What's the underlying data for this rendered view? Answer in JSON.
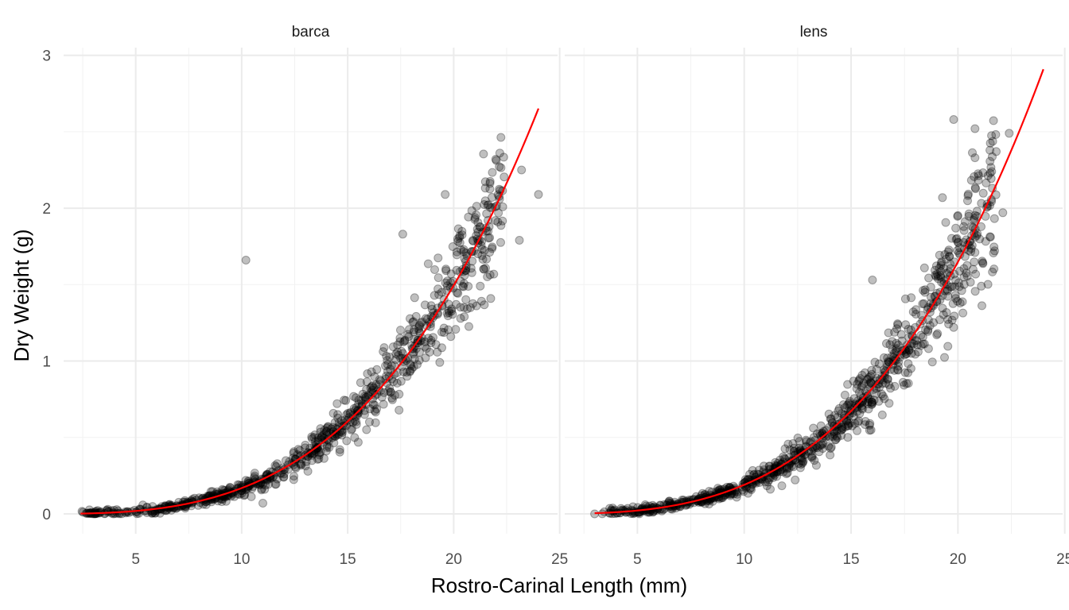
{
  "chart_data": {
    "type": "scatter",
    "xlabel": "Rostro-Carinal Length (mm)",
    "ylabel": "Dry Weight (g)",
    "xlim": [
      1.6,
      24.9
    ],
    "ylim": [
      -0.13,
      3.05
    ],
    "x_ticks": [
      5,
      10,
      15,
      20,
      25
    ],
    "y_ticks": [
      0,
      1,
      2,
      3
    ],
    "grid": true,
    "legend": "none",
    "point_color": "#000000",
    "point_alpha": 0.25,
    "fit_color": "#ff0000",
    "facets": [
      {
        "name": "barca",
        "fit": {
          "model": "power",
          "a": 0.000121,
          "b": 3.145,
          "x_range": [
            2.4,
            24.0
          ]
        },
        "outliers": [
          [
            10.2,
            1.66
          ],
          [
            17.6,
            1.83
          ],
          [
            23.2,
            2.25
          ],
          [
            24.0,
            2.09
          ],
          [
            23.1,
            1.79
          ],
          [
            11.0,
            0.07
          ],
          [
            20.5,
            1.29
          ],
          [
            19.6,
            2.09
          ]
        ],
        "point_count": 830,
        "sample_xrange": [
          2.4,
          22.4
        ],
        "spread": 0.11
      },
      {
        "name": "lens",
        "fit": {
          "model": "power",
          "a": 0.000146,
          "b": 3.115,
          "x_range": [
            3.0,
            24.0
          ]
        },
        "outliers": [
          [
            3.0,
            0.0
          ],
          [
            19.8,
            2.58
          ],
          [
            20.8,
            2.52
          ],
          [
            22.4,
            2.49
          ],
          [
            22.1,
            1.97
          ],
          [
            20.8,
            2.33
          ],
          [
            16.0,
            1.53
          ],
          [
            19.8,
            1.22
          ]
        ],
        "point_count": 900,
        "sample_xrange": [
          3.3,
          21.8
        ],
        "spread": 0.12
      }
    ]
  }
}
